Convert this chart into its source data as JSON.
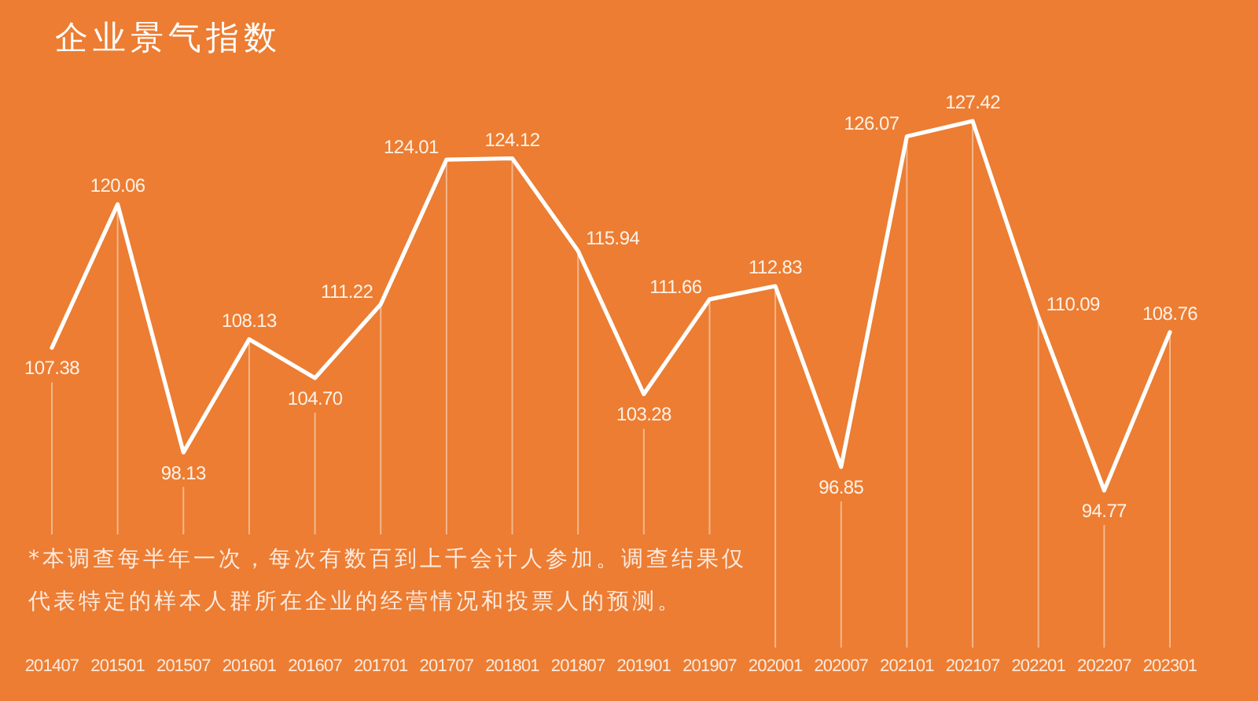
{
  "chart_data": {
    "type": "line",
    "title": "企业景气指数",
    "categories": [
      "201407",
      "201501",
      "201507",
      "201601",
      "201607",
      "201701",
      "201707",
      "201801",
      "201807",
      "201901",
      "201907",
      "202001",
      "202007",
      "202101",
      "202107",
      "202201",
      "202207",
      "202301"
    ],
    "values": [
      107.38,
      120.06,
      98.13,
      108.13,
      104.7,
      111.22,
      124.01,
      124.12,
      115.94,
      103.28,
      111.66,
      112.83,
      96.85,
      126.07,
      127.42,
      110.09,
      94.77,
      108.76
    ],
    "value_labels": [
      "107.38",
      "120.06",
      "98.13",
      "108.13",
      "104.70",
      "111.22",
      "124.01",
      "124.12",
      "115.94",
      "103.28",
      "111.66",
      "112.83",
      "96.85",
      "126.07",
      "127.42",
      "110.09",
      "94.77",
      "108.76"
    ],
    "color": "#ffffff",
    "grid": "x",
    "annotations": [
      "*本调查每半年一次，每次有数百到上千会计人参加。调查结果仅代表特定的样本人群所在企业的经营情况和投票人的预测。"
    ]
  }
}
